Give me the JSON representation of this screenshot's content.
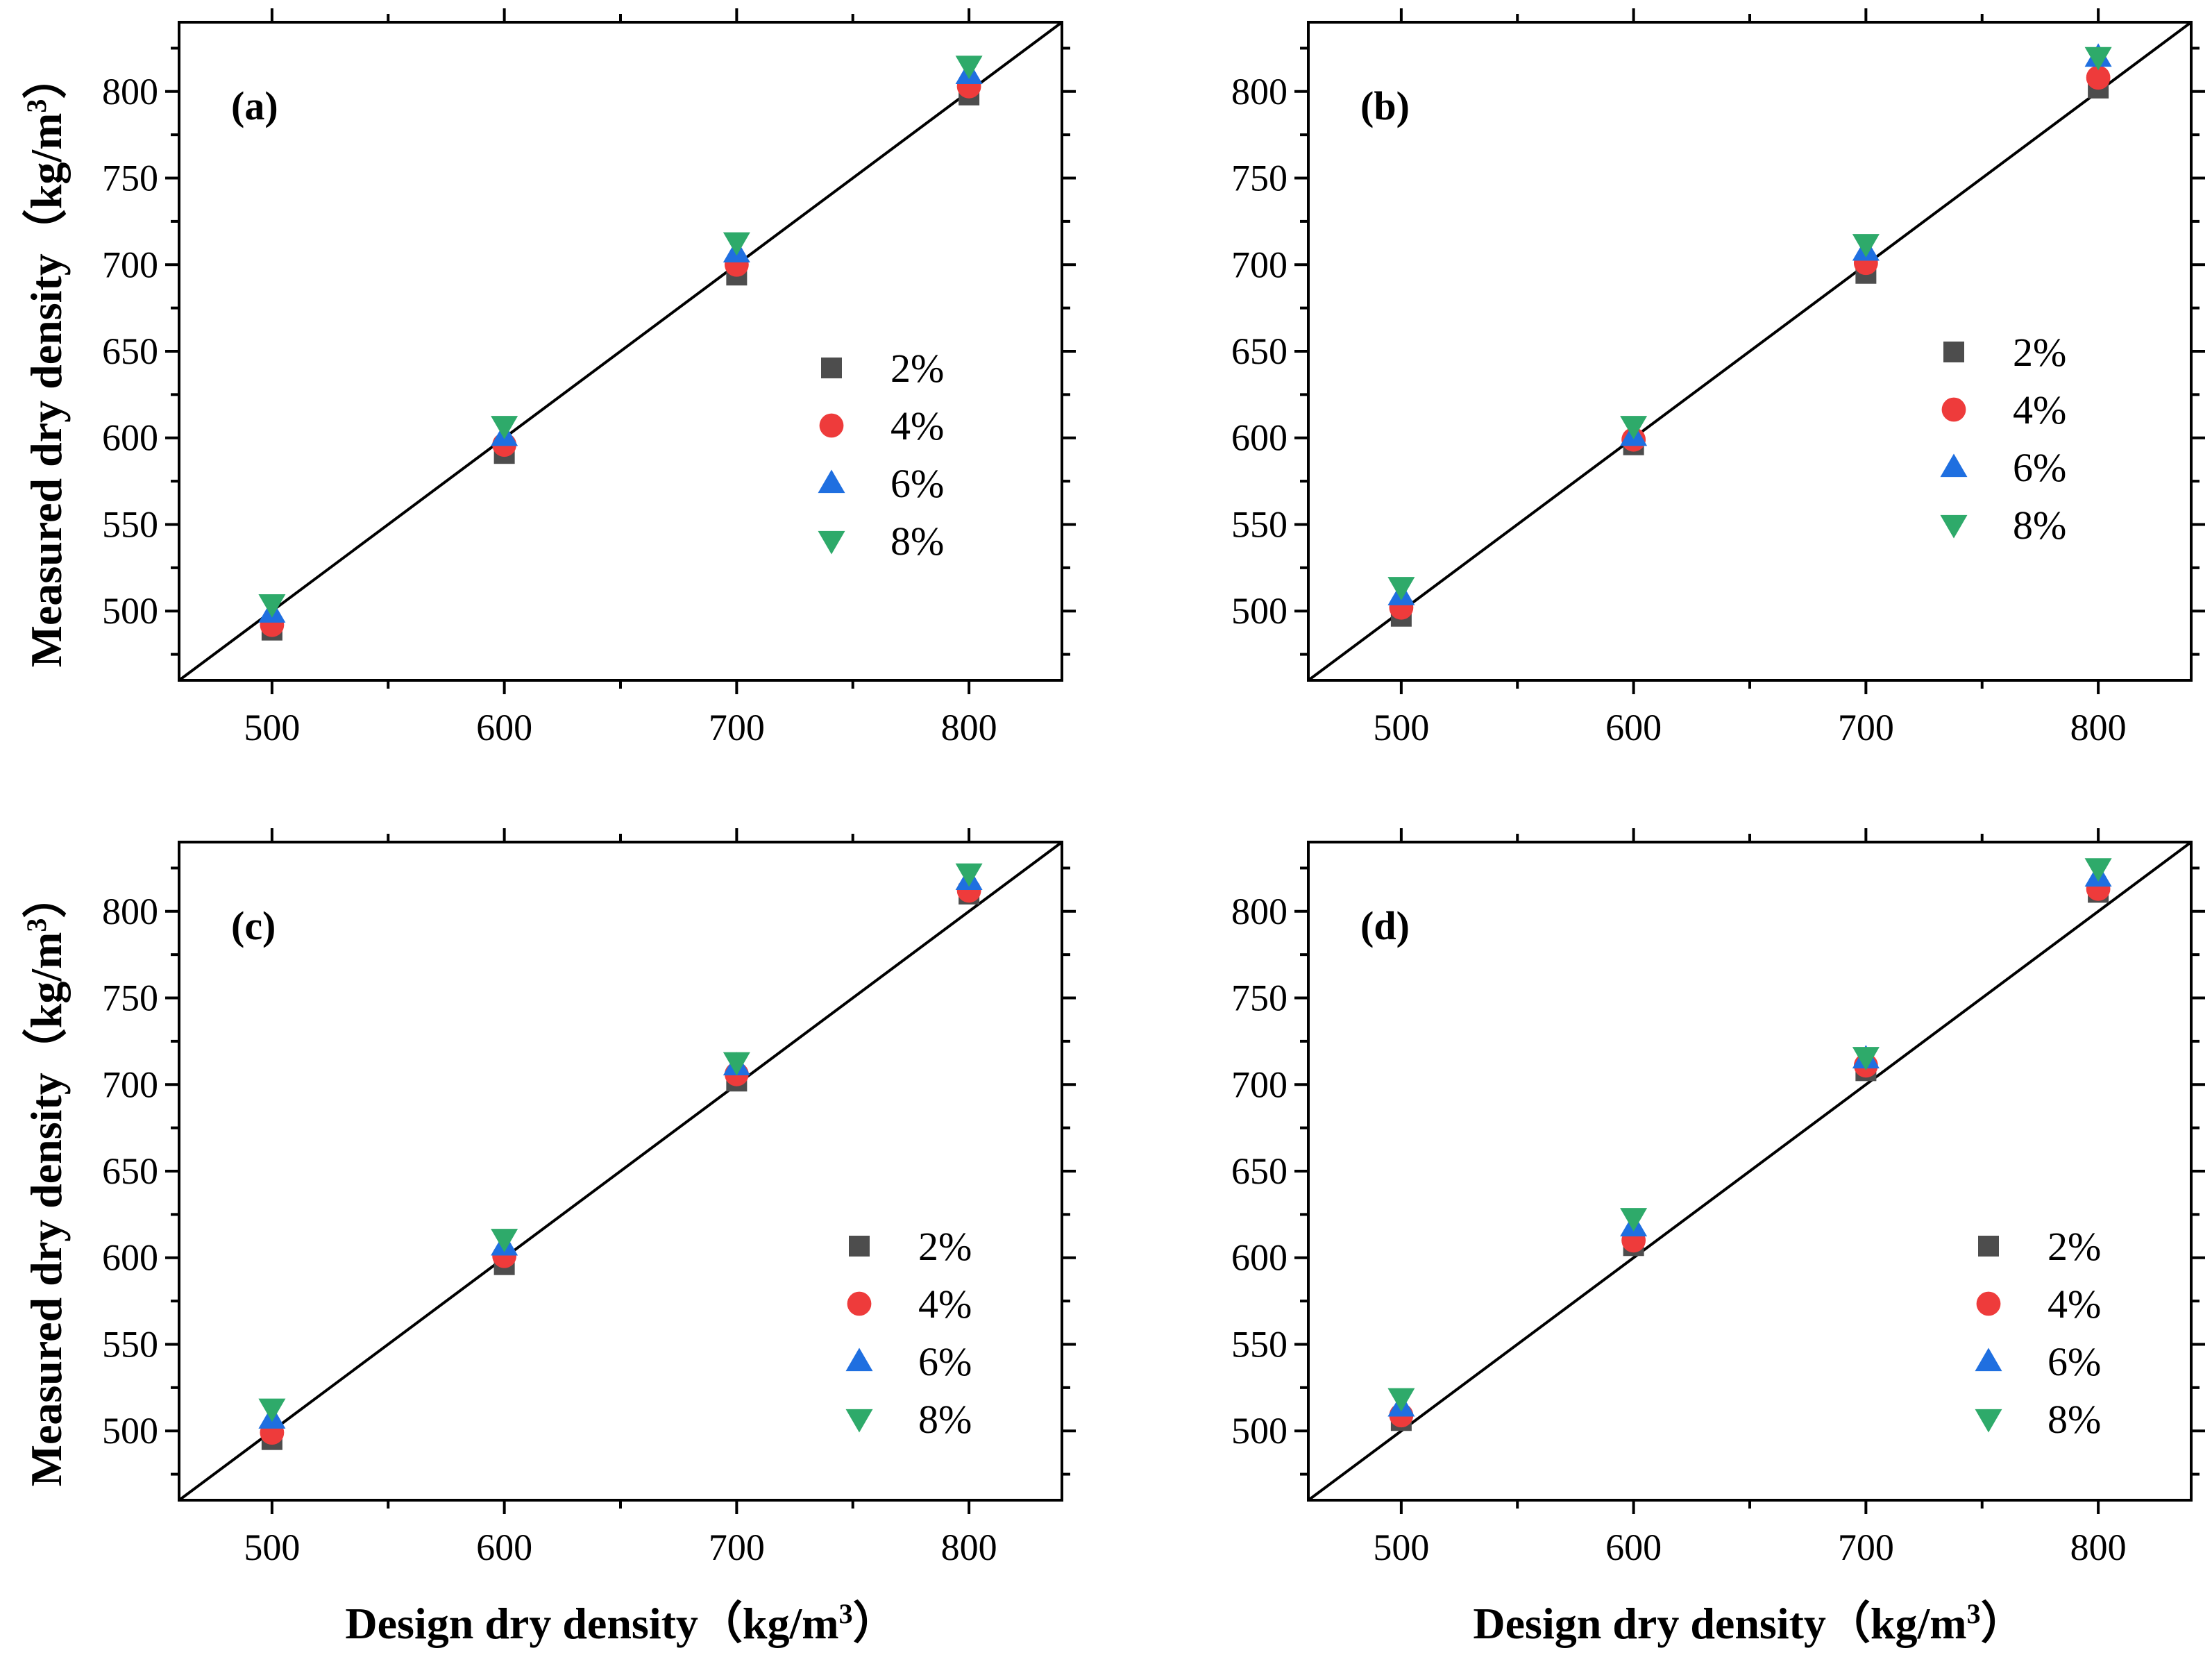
{
  "figure": {
    "x_title": "Design dry density（kg/m",
    "x_title_sup": "3",
    "x_title_close": "）",
    "y_title": "Measured dry density（kg/m",
    "y_title_sup": "3",
    "y_title_close": "）"
  },
  "colors": {
    "2%": "#4d4d4d",
    "4%": "#ee3b3b",
    "6%": "#1f6fe0",
    "8%": "#2eaa6a",
    "axis": "#000000"
  },
  "chart_data": [
    {
      "type": "scatter",
      "panel_label": "(a)",
      "xlim": [
        460,
        840
      ],
      "ylim": [
        460,
        840
      ],
      "x_ticks": [
        500,
        600,
        700,
        800
      ],
      "y_ticks": [
        500,
        550,
        600,
        650,
        700,
        750,
        800
      ],
      "x": [
        500,
        600,
        700,
        800
      ],
      "reference_line": "y = x",
      "legend_position": "center-right",
      "series": [
        {
          "name": "2%",
          "marker": "square",
          "values": [
            489,
            591,
            694,
            798
          ]
        },
        {
          "name": "4%",
          "marker": "circle",
          "values": [
            492,
            596,
            700,
            803
          ]
        },
        {
          "name": "6%",
          "marker": "triangle-up",
          "values": [
            499,
            601,
            707,
            810
          ]
        },
        {
          "name": "8%",
          "marker": "triangle-down",
          "values": [
            504,
            607,
            713,
            815
          ]
        }
      ]
    },
    {
      "type": "scatter",
      "panel_label": "(b)",
      "xlim": [
        460,
        840
      ],
      "ylim": [
        460,
        840
      ],
      "x_ticks": [
        500,
        600,
        700,
        800
      ],
      "y_ticks": [
        500,
        550,
        600,
        650,
        700,
        750,
        800
      ],
      "x": [
        500,
        600,
        700,
        800
      ],
      "reference_line": "y = x",
      "legend_position": "center-right",
      "series": [
        {
          "name": "2%",
          "marker": "square",
          "values": [
            497,
            596,
            695,
            802
          ]
        },
        {
          "name": "4%",
          "marker": "circle",
          "values": [
            502,
            599,
            701,
            808
          ]
        },
        {
          "name": "6%",
          "marker": "triangle-up",
          "values": [
            509,
            601,
            708,
            820
          ]
        },
        {
          "name": "8%",
          "marker": "triangle-down",
          "values": [
            514,
            607,
            712,
            820
          ]
        }
      ]
    },
    {
      "type": "scatter",
      "panel_label": "(c)",
      "xlim": [
        460,
        840
      ],
      "ylim": [
        460,
        840
      ],
      "x_ticks": [
        500,
        600,
        700,
        800
      ],
      "y_ticks": [
        500,
        550,
        600,
        650,
        700,
        750,
        800
      ],
      "x": [
        500,
        600,
        700,
        800
      ],
      "reference_line": "y = x",
      "legend_position": "bottom-right",
      "series": [
        {
          "name": "2%",
          "marker": "square",
          "values": [
            495,
            596,
            702,
            810
          ]
        },
        {
          "name": "4%",
          "marker": "circle",
          "values": [
            499,
            601,
            706,
            812
          ]
        },
        {
          "name": "6%",
          "marker": "triangle-up",
          "values": [
            507,
            607,
            711,
            818
          ]
        },
        {
          "name": "8%",
          "marker": "triangle-down",
          "values": [
            513,
            611,
            713,
            822
          ]
        }
      ]
    },
    {
      "type": "scatter",
      "panel_label": "(d)",
      "xlim": [
        460,
        840
      ],
      "ylim": [
        460,
        840
      ],
      "x_ticks": [
        500,
        600,
        700,
        800
      ],
      "y_ticks": [
        500,
        550,
        600,
        650,
        700,
        750,
        800
      ],
      "x": [
        500,
        600,
        700,
        800
      ],
      "reference_line": "y = x",
      "legend_position": "bottom-right",
      "series": [
        {
          "name": "2%",
          "marker": "square",
          "values": [
            506,
            607,
            708,
            811
          ]
        },
        {
          "name": "4%",
          "marker": "circle",
          "values": [
            509,
            610,
            711,
            813
          ]
        },
        {
          "name": "6%",
          "marker": "triangle-up",
          "values": [
            514,
            618,
            715,
            820
          ]
        },
        {
          "name": "8%",
          "marker": "triangle-down",
          "values": [
            519,
            623,
            716,
            825
          ]
        }
      ]
    }
  ]
}
